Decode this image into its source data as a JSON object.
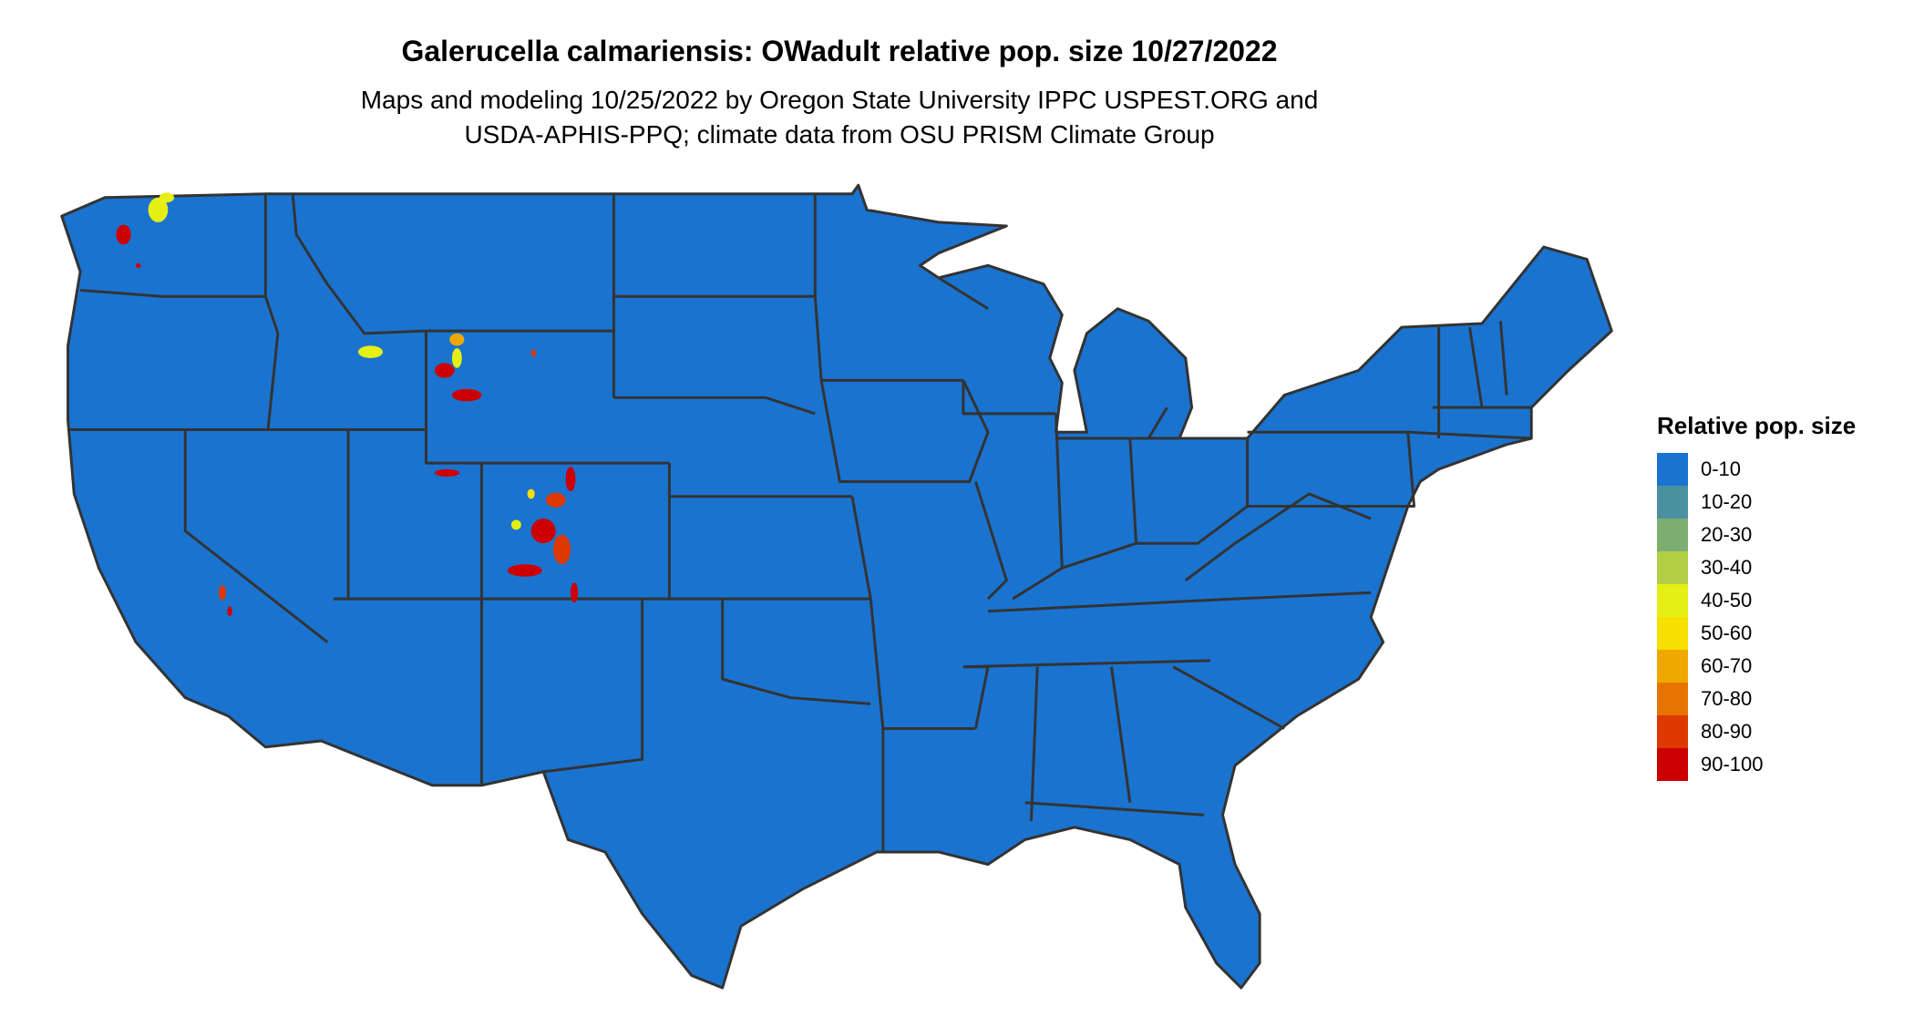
{
  "title": "Galerucella calmariensis: OWadult relative pop. size 10/27/2022",
  "subtitle_lines": [
    "Maps and modeling 10/25/2022 by Oregon State University IPPC USPEST.ORG and",
    "USDA-APHIS-PPQ; climate data from OSU PRISM Climate Group"
  ],
  "map": {
    "base_color": "#1a73cf",
    "border_color": "#333333"
  },
  "legend": {
    "title": "Relative pop. size",
    "items": [
      {
        "label": "0-10",
        "color": "#1a73cf"
      },
      {
        "label": "10-20",
        "color": "#4a90a0"
      },
      {
        "label": "20-30",
        "color": "#7cae72"
      },
      {
        "label": "30-40",
        "color": "#b2cf45"
      },
      {
        "label": "40-50",
        "color": "#e5ef14"
      },
      {
        "label": "50-60",
        "color": "#f7e000"
      },
      {
        "label": "60-70",
        "color": "#efa800"
      },
      {
        "label": "70-80",
        "color": "#e57400"
      },
      {
        "label": "80-90",
        "color": "#dc3800"
      },
      {
        "label": "90-100",
        "color": "#cc0000"
      }
    ]
  }
}
